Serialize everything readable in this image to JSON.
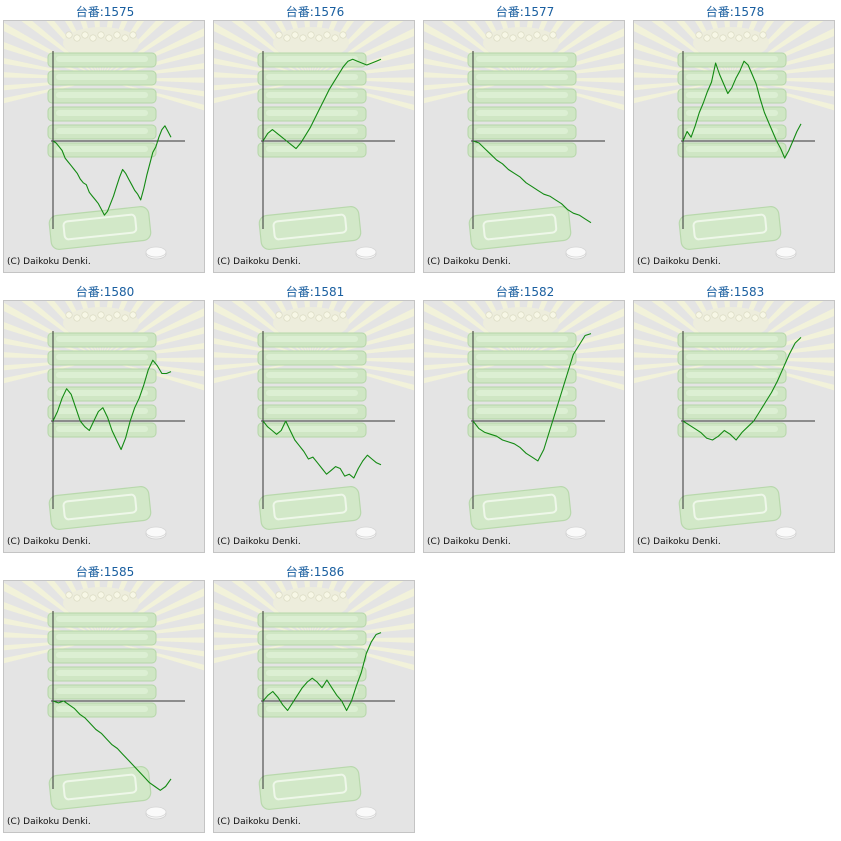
{
  "copyright": "(C) Daikoku Denki.",
  "colors": {
    "line": "#138a13",
    "axis": "#333333",
    "title": "#1a5fa0",
    "panel": "#e4e4e4"
  },
  "chart_data": [
    {
      "type": "line",
      "title": "台番:1575",
      "values": [
        0,
        -2,
        -6,
        -10,
        -18,
        -22,
        -26,
        -30,
        -34,
        -40,
        -44,
        -46,
        -54,
        -58,
        -62,
        -66,
        -72,
        -78,
        -74,
        -66,
        -58,
        -48,
        -38,
        -30,
        -34,
        -40,
        -46,
        -52,
        -56,
        -62,
        -50,
        -36,
        -24,
        -12,
        -6,
        4,
        12,
        16,
        10,
        4
      ]
    },
    {
      "type": "line",
      "title": "台番:1576",
      "values": [
        0,
        8,
        12,
        8,
        4,
        0,
        -4,
        -8,
        -2,
        6,
        14,
        24,
        34,
        44,
        54,
        62,
        70,
        78,
        84,
        86,
        84,
        82,
        80,
        82,
        84,
        86
      ]
    },
    {
      "type": "line",
      "title": "台番:1577",
      "values": [
        0,
        -2,
        -8,
        -14,
        -20,
        -24,
        -30,
        -34,
        -38,
        -44,
        -48,
        -52,
        -56,
        -58,
        -62,
        -66,
        -72,
        -76,
        -78,
        -82,
        -86
      ]
    },
    {
      "type": "line",
      "title": "台番:1578",
      "values": [
        0,
        10,
        4,
        16,
        30,
        40,
        52,
        62,
        82,
        70,
        60,
        50,
        56,
        66,
        74,
        84,
        80,
        70,
        60,
        44,
        30,
        20,
        10,
        0,
        -8,
        -18,
        -10,
        0,
        10,
        18
      ]
    },
    {
      "type": "line",
      "title": "台番:1580",
      "values": [
        0,
        10,
        24,
        34,
        28,
        14,
        0,
        -6,
        -10,
        0,
        10,
        14,
        4,
        -10,
        -20,
        -30,
        -18,
        0,
        14,
        24,
        38,
        54,
        64,
        58,
        50,
        50,
        52
      ]
    },
    {
      "type": "line",
      "title": "台番:1581",
      "values": [
        0,
        -6,
        -10,
        -14,
        -10,
        0,
        -10,
        -20,
        -26,
        -32,
        -40,
        -38,
        -44,
        -50,
        -56,
        -52,
        -48,
        -50,
        -58,
        -56,
        -60,
        -50,
        -42,
        -36,
        -40,
        -44,
        -46
      ]
    },
    {
      "type": "line",
      "title": "台番:1582",
      "values": [
        0,
        -8,
        -12,
        -14,
        -16,
        -20,
        -22,
        -24,
        -28,
        -34,
        -38,
        -42,
        -30,
        -10,
        10,
        30,
        50,
        70,
        80,
        90,
        92
      ]
    },
    {
      "type": "line",
      "title": "台番:1583",
      "values": [
        0,
        -4,
        -8,
        -12,
        -18,
        -20,
        -16,
        -10,
        -14,
        -20,
        -12,
        -6,
        0,
        10,
        20,
        30,
        42,
        56,
        70,
        82,
        88
      ]
    },
    {
      "type": "line",
      "title": "台番:1585",
      "values": [
        0,
        -2,
        0,
        -4,
        -8,
        -14,
        -18,
        -24,
        -30,
        -34,
        -40,
        -46,
        -50,
        -56,
        -62,
        -68,
        -74,
        -80,
        -86,
        -90,
        -94,
        -90,
        -82
      ]
    },
    {
      "type": "line",
      "title": "台番:1586",
      "values": [
        0,
        6,
        10,
        4,
        -4,
        -10,
        -2,
        6,
        14,
        20,
        24,
        20,
        14,
        22,
        14,
        6,
        0,
        -10,
        0,
        16,
        30,
        50,
        62,
        70,
        72
      ]
    }
  ]
}
